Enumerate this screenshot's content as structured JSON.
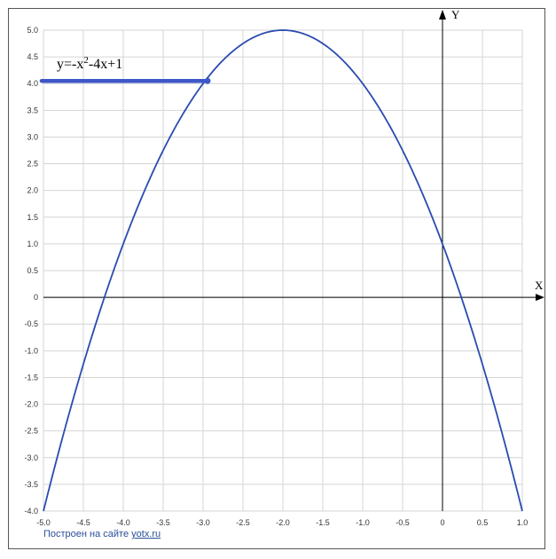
{
  "chart_data": {
    "type": "line",
    "title": "",
    "xlabel": "X",
    "ylabel": "Y",
    "xlim": [
      -5.0,
      1.0
    ],
    "ylim": [
      -4.0,
      5.0
    ],
    "grid": true,
    "x_ticks": [
      "-5.0",
      "-4.5",
      "-4.0",
      "-3.5",
      "-3.0",
      "-2.5",
      "-2.0",
      "-1.5",
      "-1.0",
      "-0.5",
      "0",
      "0.5",
      "1.0"
    ],
    "y_ticks": [
      "5.0",
      "4.5",
      "4.0",
      "3.5",
      "3.0",
      "2.5",
      "2.0",
      "1.5",
      "1.0",
      "0.5",
      "0",
      "-0.5",
      "-1.0",
      "-1.5",
      "-2.0",
      "-2.5",
      "-3.0",
      "-3.5",
      "-4.0"
    ],
    "series": [
      {
        "name": "y=-x²-4x+1",
        "color": "#2a4bb0",
        "x": [
          -5.0,
          -4.5,
          -4.0,
          -3.5,
          -3.0,
          -2.5,
          -2.0,
          -1.5,
          -1.0,
          -0.5,
          0.0,
          0.5,
          1.0
        ],
        "y": [
          -4.0,
          -1.25,
          1.0,
          2.75,
          4.0,
          4.75,
          5.0,
          4.75,
          4.0,
          2.75,
          1.0,
          -1.25,
          -4.0
        ]
      }
    ],
    "legend": {
      "label_main": "y=-x",
      "label_sup": "2",
      "label_rest": "-4x+1",
      "color": "#3d57c9"
    }
  },
  "credit": {
    "text": "Построен на сайте ",
    "link": "yotx.ru"
  }
}
